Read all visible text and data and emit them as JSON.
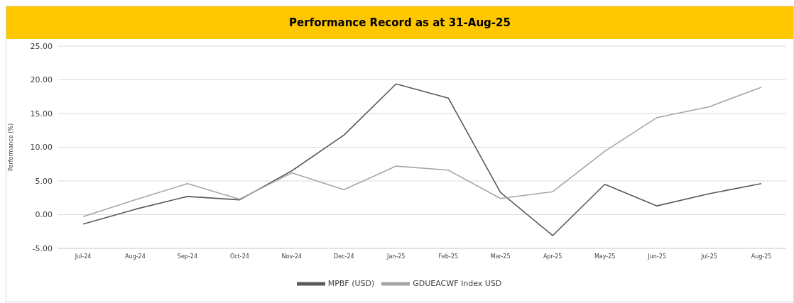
{
  "chart_data": {
    "type": "line",
    "title": "Performance Record as at 31-Aug-25",
    "ylabel": "Performance (%)",
    "categories": [
      "Jul-24",
      "Aug-24",
      "Sep-24",
      "Oct-24",
      "Nov-24",
      "Dec-24",
      "Jan-25",
      "Feb-25",
      "Mar-25",
      "Apr-25",
      "May-25",
      "Jun-25",
      "Jul-25",
      "Aug-25"
    ],
    "series": [
      {
        "name": "MPBF (USD)",
        "color": "#595959",
        "values": [
          -1.4,
          0.8,
          2.7,
          2.2,
          6.5,
          11.8,
          19.4,
          17.3,
          3.3,
          -3.1,
          4.5,
          1.3,
          3.1,
          4.6
        ]
      },
      {
        "name": "GDUEACWF Index USD",
        "color": "#a6a6a6",
        "values": [
          -0.3,
          2.2,
          4.6,
          2.3,
          6.2,
          3.7,
          7.2,
          6.6,
          2.4,
          3.4,
          9.4,
          14.4,
          16.0,
          18.9
        ]
      }
    ],
    "ylim": [
      -5,
      25
    ],
    "yticks": [
      {
        "value": -5,
        "label": "-5.00"
      },
      {
        "value": 0,
        "label": "0.00"
      },
      {
        "value": 5,
        "label": "5.00"
      },
      {
        "value": 10,
        "label": "10.00"
      },
      {
        "value": 15,
        "label": "15.00"
      },
      {
        "value": 20,
        "label": "20.00"
      },
      {
        "value": 25,
        "label": "25.00"
      }
    ],
    "grid": "y",
    "legend": "bottom",
    "marker": "none",
    "line_style": "solid"
  }
}
